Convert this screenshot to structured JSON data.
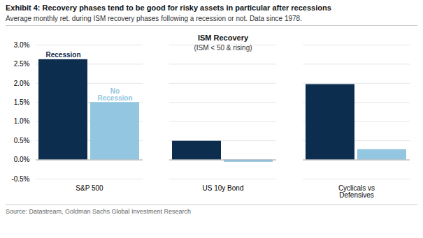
{
  "chart_data": {
    "type": "bar",
    "title": "Exhibit 4: Recovery phases tend to be good for risky assets in particular after recessions",
    "subtitle": "Average monthly ret. during ISM recovery phases following a recession or not. Data since 1978.",
    "caption": "Source: Datastream, Goldman Sachs Global Investment Research",
    "annotations": [
      "ISM Recovery",
      "(ISM < 50 & rising)"
    ],
    "categories": [
      "S&P 500",
      "US 10y Bond",
      "Cyclicals vs\nDefensives"
    ],
    "series": [
      {
        "name": "Recession",
        "color": "#0d2d4e",
        "values": [
          2.62,
          0.49,
          1.97
        ]
      },
      {
        "name": "No\nRecession",
        "color": "#93c6e0",
        "values": [
          1.5,
          -0.06,
          0.27
        ]
      }
    ],
    "ylim": [
      -0.5,
      3.0
    ],
    "yticks": [
      {
        "value": -0.5,
        "label": "-0.5%"
      },
      {
        "value": 0.0,
        "label": "0.0%"
      },
      {
        "value": 0.5,
        "label": "0.5%"
      },
      {
        "value": 1.0,
        "label": "1.0%"
      },
      {
        "value": 1.5,
        "label": "1.5%"
      },
      {
        "value": 2.0,
        "label": "2.0%"
      },
      {
        "value": 2.5,
        "label": "2.5%"
      },
      {
        "value": 3.0,
        "label": "3.0%"
      }
    ],
    "grid": true
  }
}
